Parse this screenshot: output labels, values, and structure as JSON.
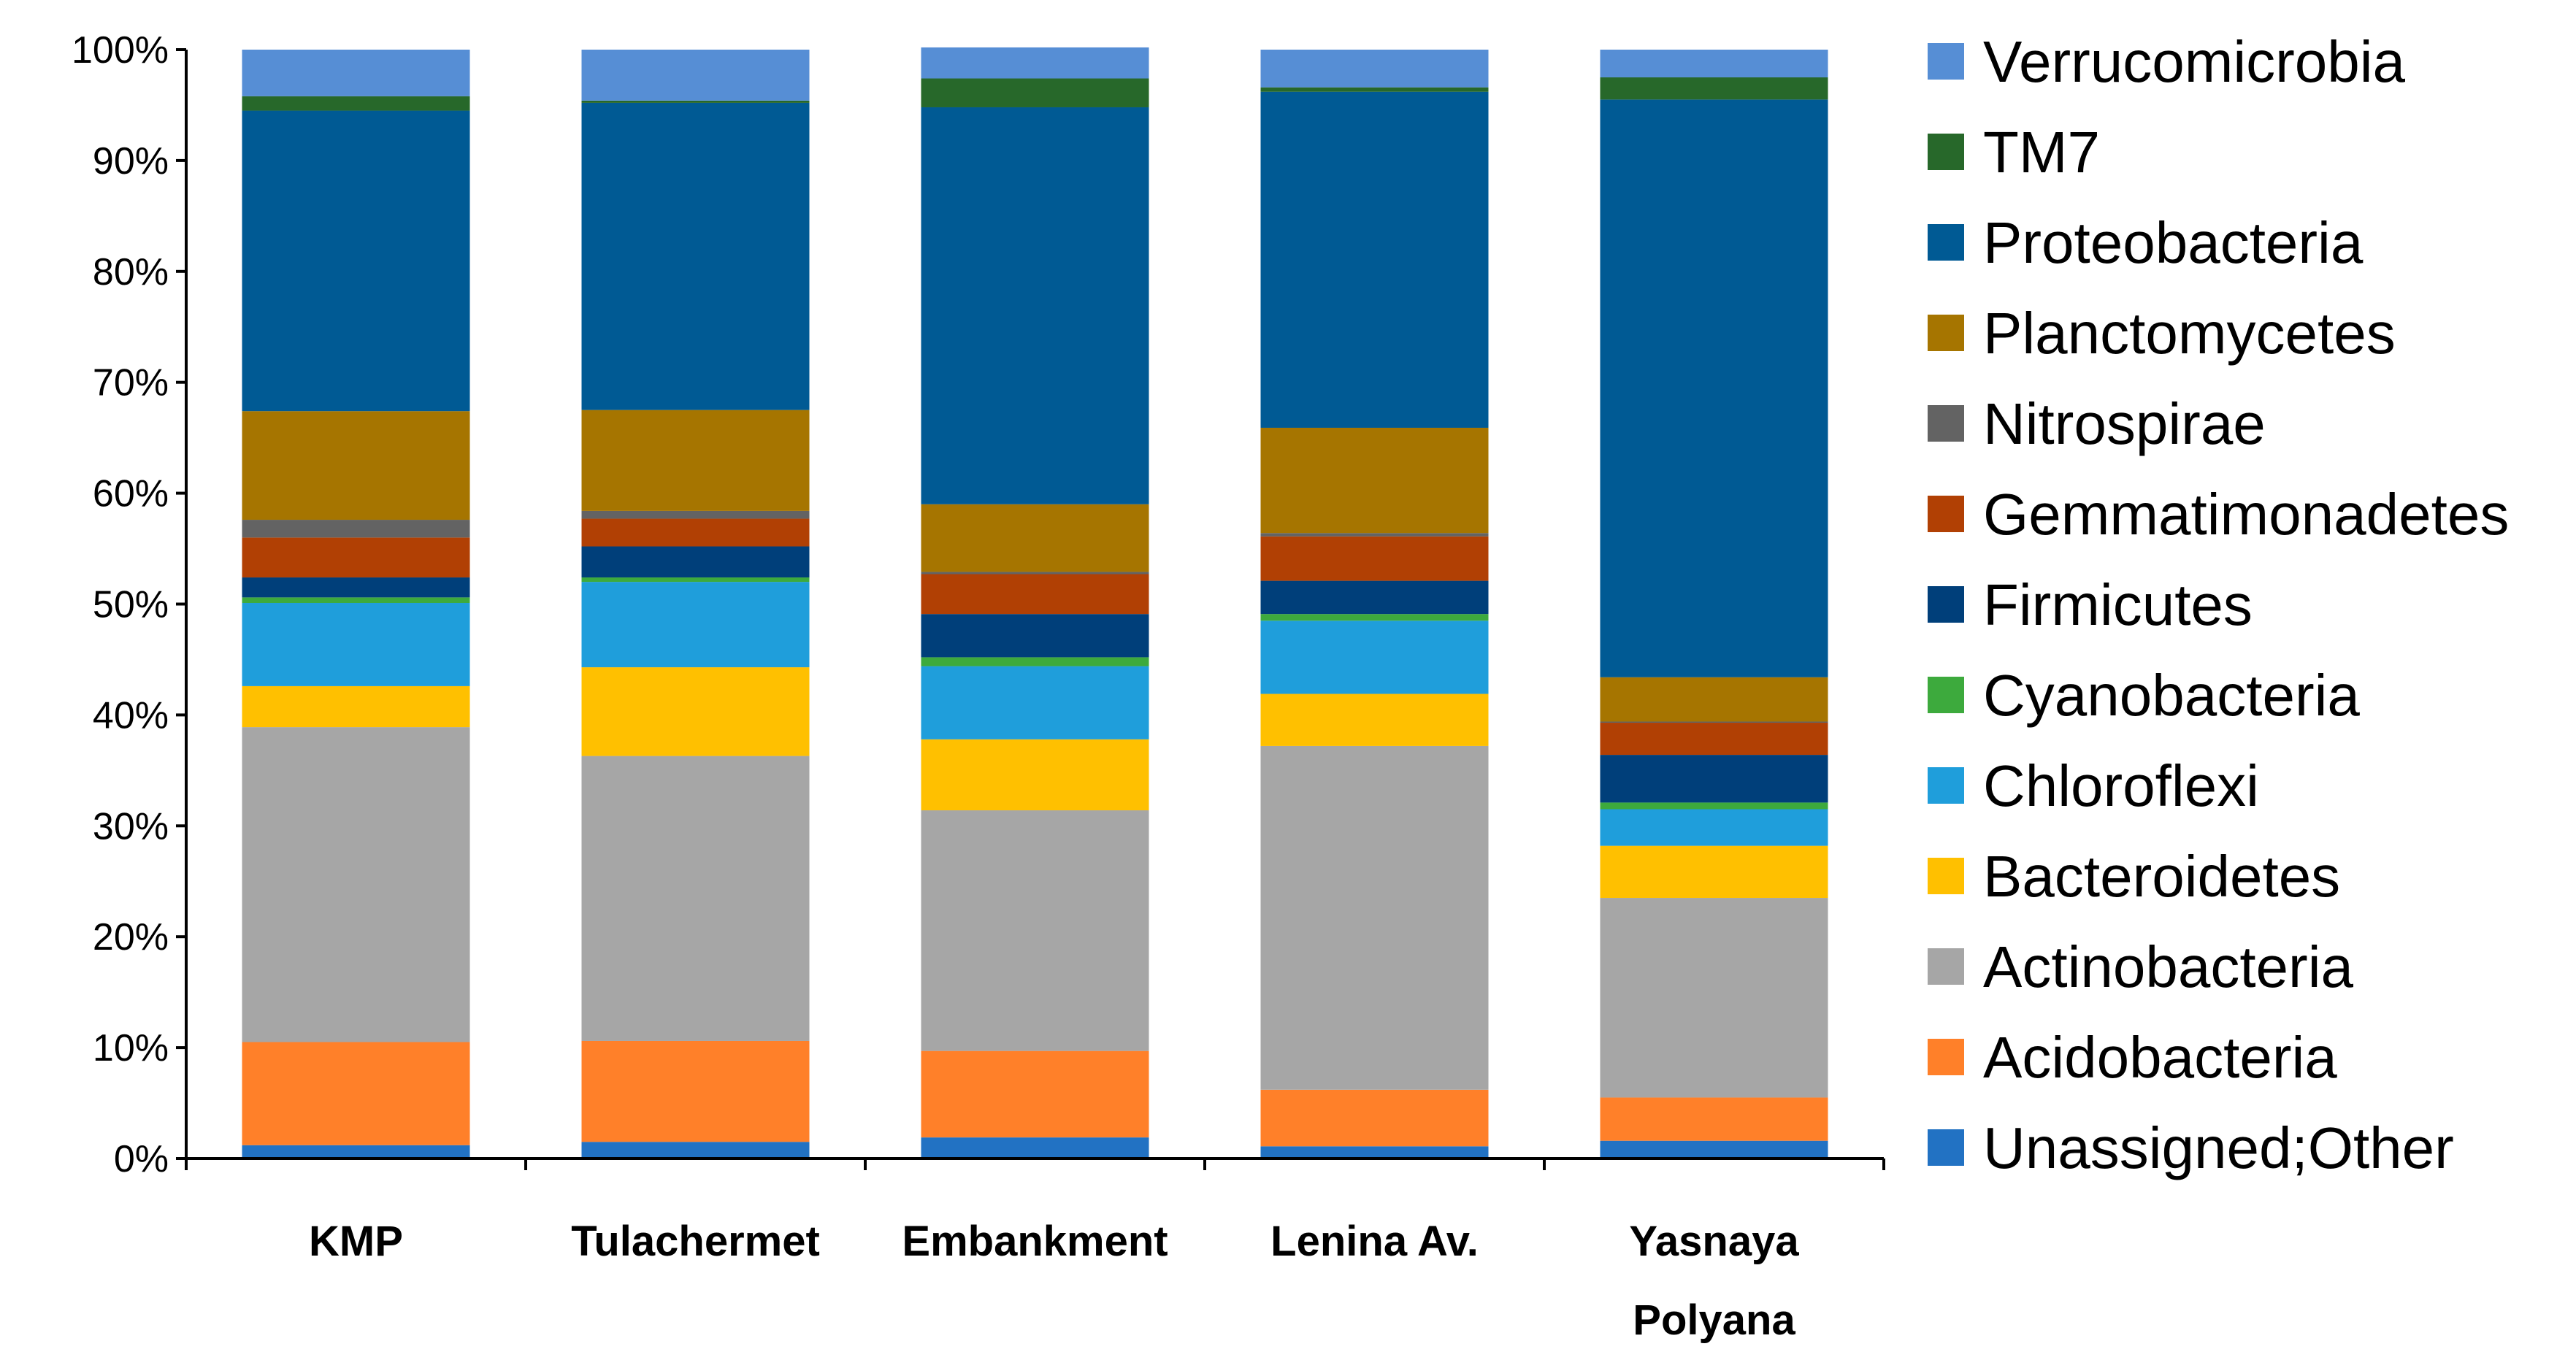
{
  "chart_data": {
    "type": "bar",
    "stacked": true,
    "normalized_percent": true,
    "title": "",
    "xlabel": "",
    "ylabel": "",
    "ylim": [
      0,
      100
    ],
    "y_ticks": [
      0,
      10,
      20,
      30,
      40,
      50,
      60,
      70,
      80,
      90,
      100
    ],
    "y_tick_labels": [
      "0%",
      "10%",
      "20%",
      "30%",
      "40%",
      "50%",
      "60%",
      "70%",
      "80%",
      "90%",
      "100%"
    ],
    "grid": false,
    "legend_position": "right",
    "categories": [
      [
        "KMP"
      ],
      [
        "Tulachermet"
      ],
      [
        "Embankment"
      ],
      [
        "Lenina Av."
      ],
      [
        "Yasnaya",
        "Polyana"
      ]
    ],
    "series": [
      {
        "name": "Unassigned;Other",
        "color": "#2272C3",
        "values": [
          1.2,
          1.5,
          1.9,
          1.1,
          1.6
        ]
      },
      {
        "name": "Acidobacteria",
        "color": "#FF8029",
        "values": [
          9.3,
          9.1,
          7.8,
          5.1,
          3.9
        ]
      },
      {
        "name": "Actinobacteria",
        "color": "#A6A6A6",
        "values": [
          28.4,
          25.7,
          21.7,
          31.0,
          18.0
        ]
      },
      {
        "name": "Bacteroidetes",
        "color": "#FFC000",
        "values": [
          3.7,
          8.0,
          6.4,
          4.7,
          4.7
        ]
      },
      {
        "name": "Chloroflexi",
        "color": "#1F9EDB",
        "values": [
          7.5,
          7.7,
          6.6,
          6.6,
          3.3
        ]
      },
      {
        "name": "Cyanobacteria",
        "color": "#3DAA3D",
        "values": [
          0.5,
          0.4,
          0.8,
          0.6,
          0.6
        ]
      },
      {
        "name": "Firmicutes",
        "color": "#003F7A",
        "values": [
          1.8,
          2.8,
          3.9,
          3.0,
          4.3
        ]
      },
      {
        "name": "Gemmatimonadetes",
        "color": "#B14004",
        "values": [
          3.6,
          2.5,
          3.6,
          4.0,
          2.9
        ]
      },
      {
        "name": "Nitrospirae",
        "color": "#636363",
        "values": [
          1.6,
          0.7,
          0.2,
          0.3,
          0.1
        ]
      },
      {
        "name": "Planctomycetes",
        "color": "#A67500",
        "values": [
          9.8,
          9.1,
          6.1,
          9.5,
          4.0
        ]
      },
      {
        "name": "Proteobacteria",
        "color": "#005A94",
        "values": [
          27.1,
          27.7,
          35.8,
          30.3,
          52.1
        ]
      },
      {
        "name": "TM7",
        "color": "#27682A",
        "values": [
          1.3,
          0.2,
          2.6,
          0.4,
          2.0
        ]
      },
      {
        "name": "Verrucomicrobia",
        "color": "#568ED5",
        "values": [
          4.2,
          4.6,
          2.8,
          3.4,
          2.5
        ]
      }
    ]
  }
}
